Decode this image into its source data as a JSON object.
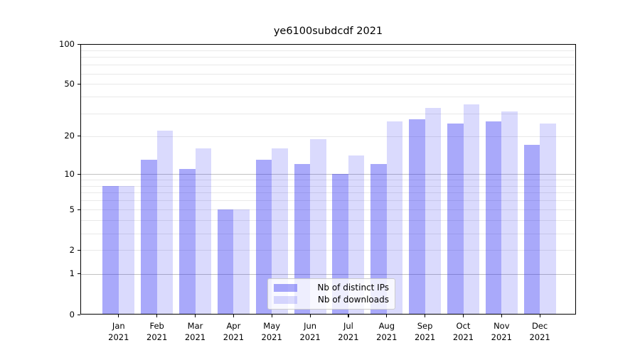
{
  "title": "ye6100subdcdf 2021",
  "chart_data": {
    "type": "bar",
    "title": "ye6100subdcdf 2021",
    "months": [
      "Jan",
      "Feb",
      "Mar",
      "Apr",
      "May",
      "Jun",
      "Jul",
      "Aug",
      "Sep",
      "Oct",
      "Nov",
      "Dec"
    ],
    "year": "2021",
    "categories": [
      "Jan 2021",
      "Feb 2021",
      "Mar 2021",
      "Apr 2021",
      "May 2021",
      "Jun 2021",
      "Jul 2021",
      "Aug 2021",
      "Sep 2021",
      "Oct 2021",
      "Nov 2021",
      "Dec 2021"
    ],
    "series": [
      {
        "name": "Nb of distinct IPs",
        "values": [
          8,
          13,
          11,
          5,
          13,
          12,
          10,
          12,
          27,
          25,
          26,
          17
        ]
      },
      {
        "name": "Nb of downloads",
        "values": [
          8,
          22,
          16,
          5,
          16,
          19,
          14,
          26,
          33,
          35,
          31,
          25
        ]
      }
    ],
    "yscale": "log1p",
    "ylim": [
      0,
      100
    ],
    "y_tick_values": [
      0,
      1,
      2,
      5,
      10,
      20,
      50,
      100
    ],
    "y_tick_labels": [
      "0",
      "1",
      "2",
      "5",
      "10",
      "20",
      "50",
      "100"
    ],
    "y_minor_grid_values": [
      2,
      3,
      4,
      5,
      6,
      7,
      8,
      9,
      20,
      30,
      40,
      50,
      60,
      70,
      80,
      90
    ],
    "y_major_grid_values": [
      1,
      10,
      100
    ],
    "grid": "horizontal",
    "legend_position": "bottom-center"
  },
  "legend": {
    "items": [
      {
        "label": "Nb of distinct IPs",
        "swatch": "ips-swatch"
      },
      {
        "label": "Nb of downloads",
        "swatch": "downloads-swatch"
      }
    ]
  },
  "colors": {
    "bar_base": "#1e1ef2",
    "ips_alpha": 0.38,
    "downloads_alpha": 0.165,
    "ips_solid_equivalent": "#aaaafa",
    "downloads_solid_equivalent": "#dadafd",
    "minor_grid": "#e9e9e9",
    "major_grid": "#c2c2c2",
    "axis": "#000000",
    "legend_border": "#cccccc",
    "background": "#ffffff"
  }
}
